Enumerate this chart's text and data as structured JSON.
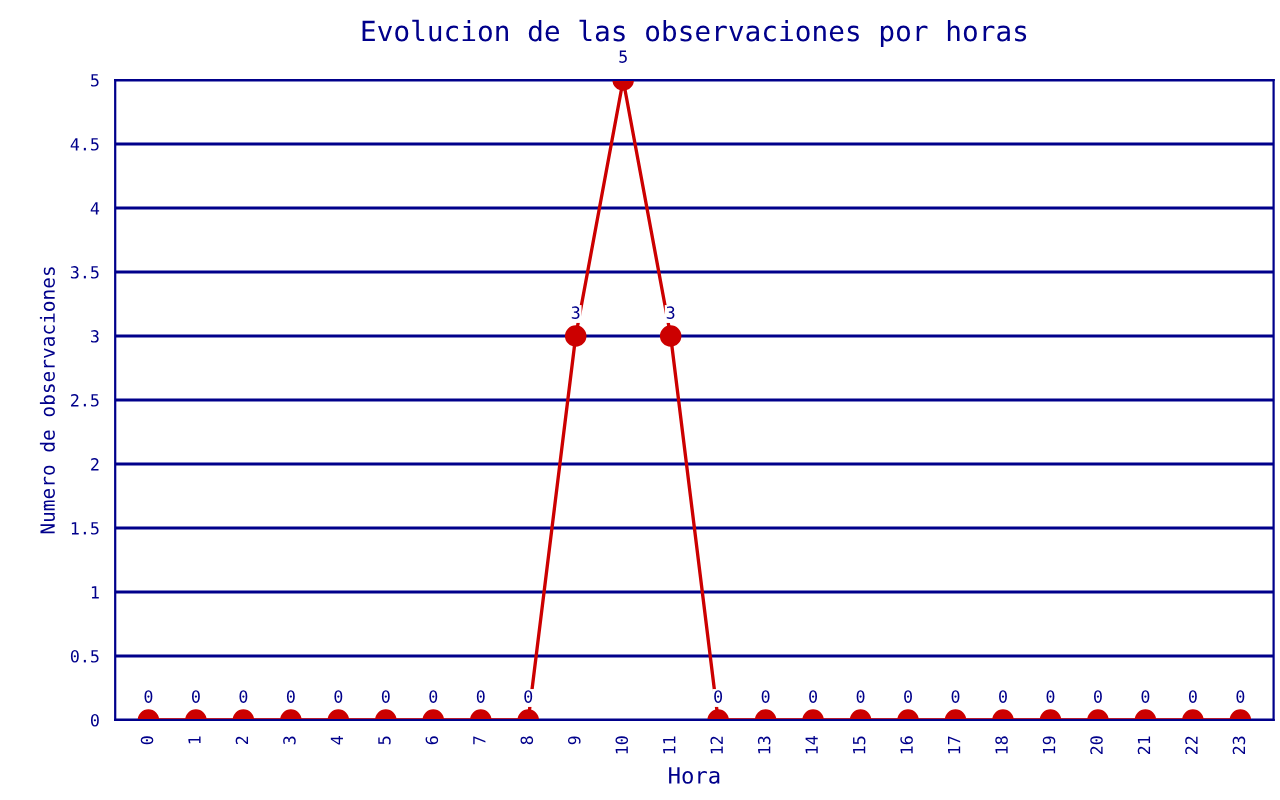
{
  "chart_data": {
    "type": "line",
    "title": "Evolucion de las observaciones por horas",
    "xlabel": "Hora",
    "ylabel": "Numero de observaciones",
    "categories": [
      "0",
      "1",
      "2",
      "3",
      "4",
      "5",
      "6",
      "7",
      "8",
      "9",
      "10",
      "11",
      "12",
      "13",
      "14",
      "15",
      "16",
      "17",
      "18",
      "19",
      "20",
      "21",
      "22",
      "23"
    ],
    "series": [
      {
        "color": "#cc0000",
        "values": [
          0,
          0,
          0,
          0,
          0,
          0,
          0,
          0,
          0,
          3,
          5,
          3,
          0,
          0,
          0,
          0,
          0,
          0,
          0,
          0,
          0,
          0,
          0,
          0
        ]
      }
    ],
    "ylim": [
      0,
      5
    ],
    "yticks": [
      0,
      0.5,
      1,
      1.5,
      2,
      2.5,
      3,
      3.5,
      4,
      4.5,
      5
    ],
    "grid": "y",
    "marker": "circle",
    "line_style": "solid",
    "data_labels": true
  }
}
